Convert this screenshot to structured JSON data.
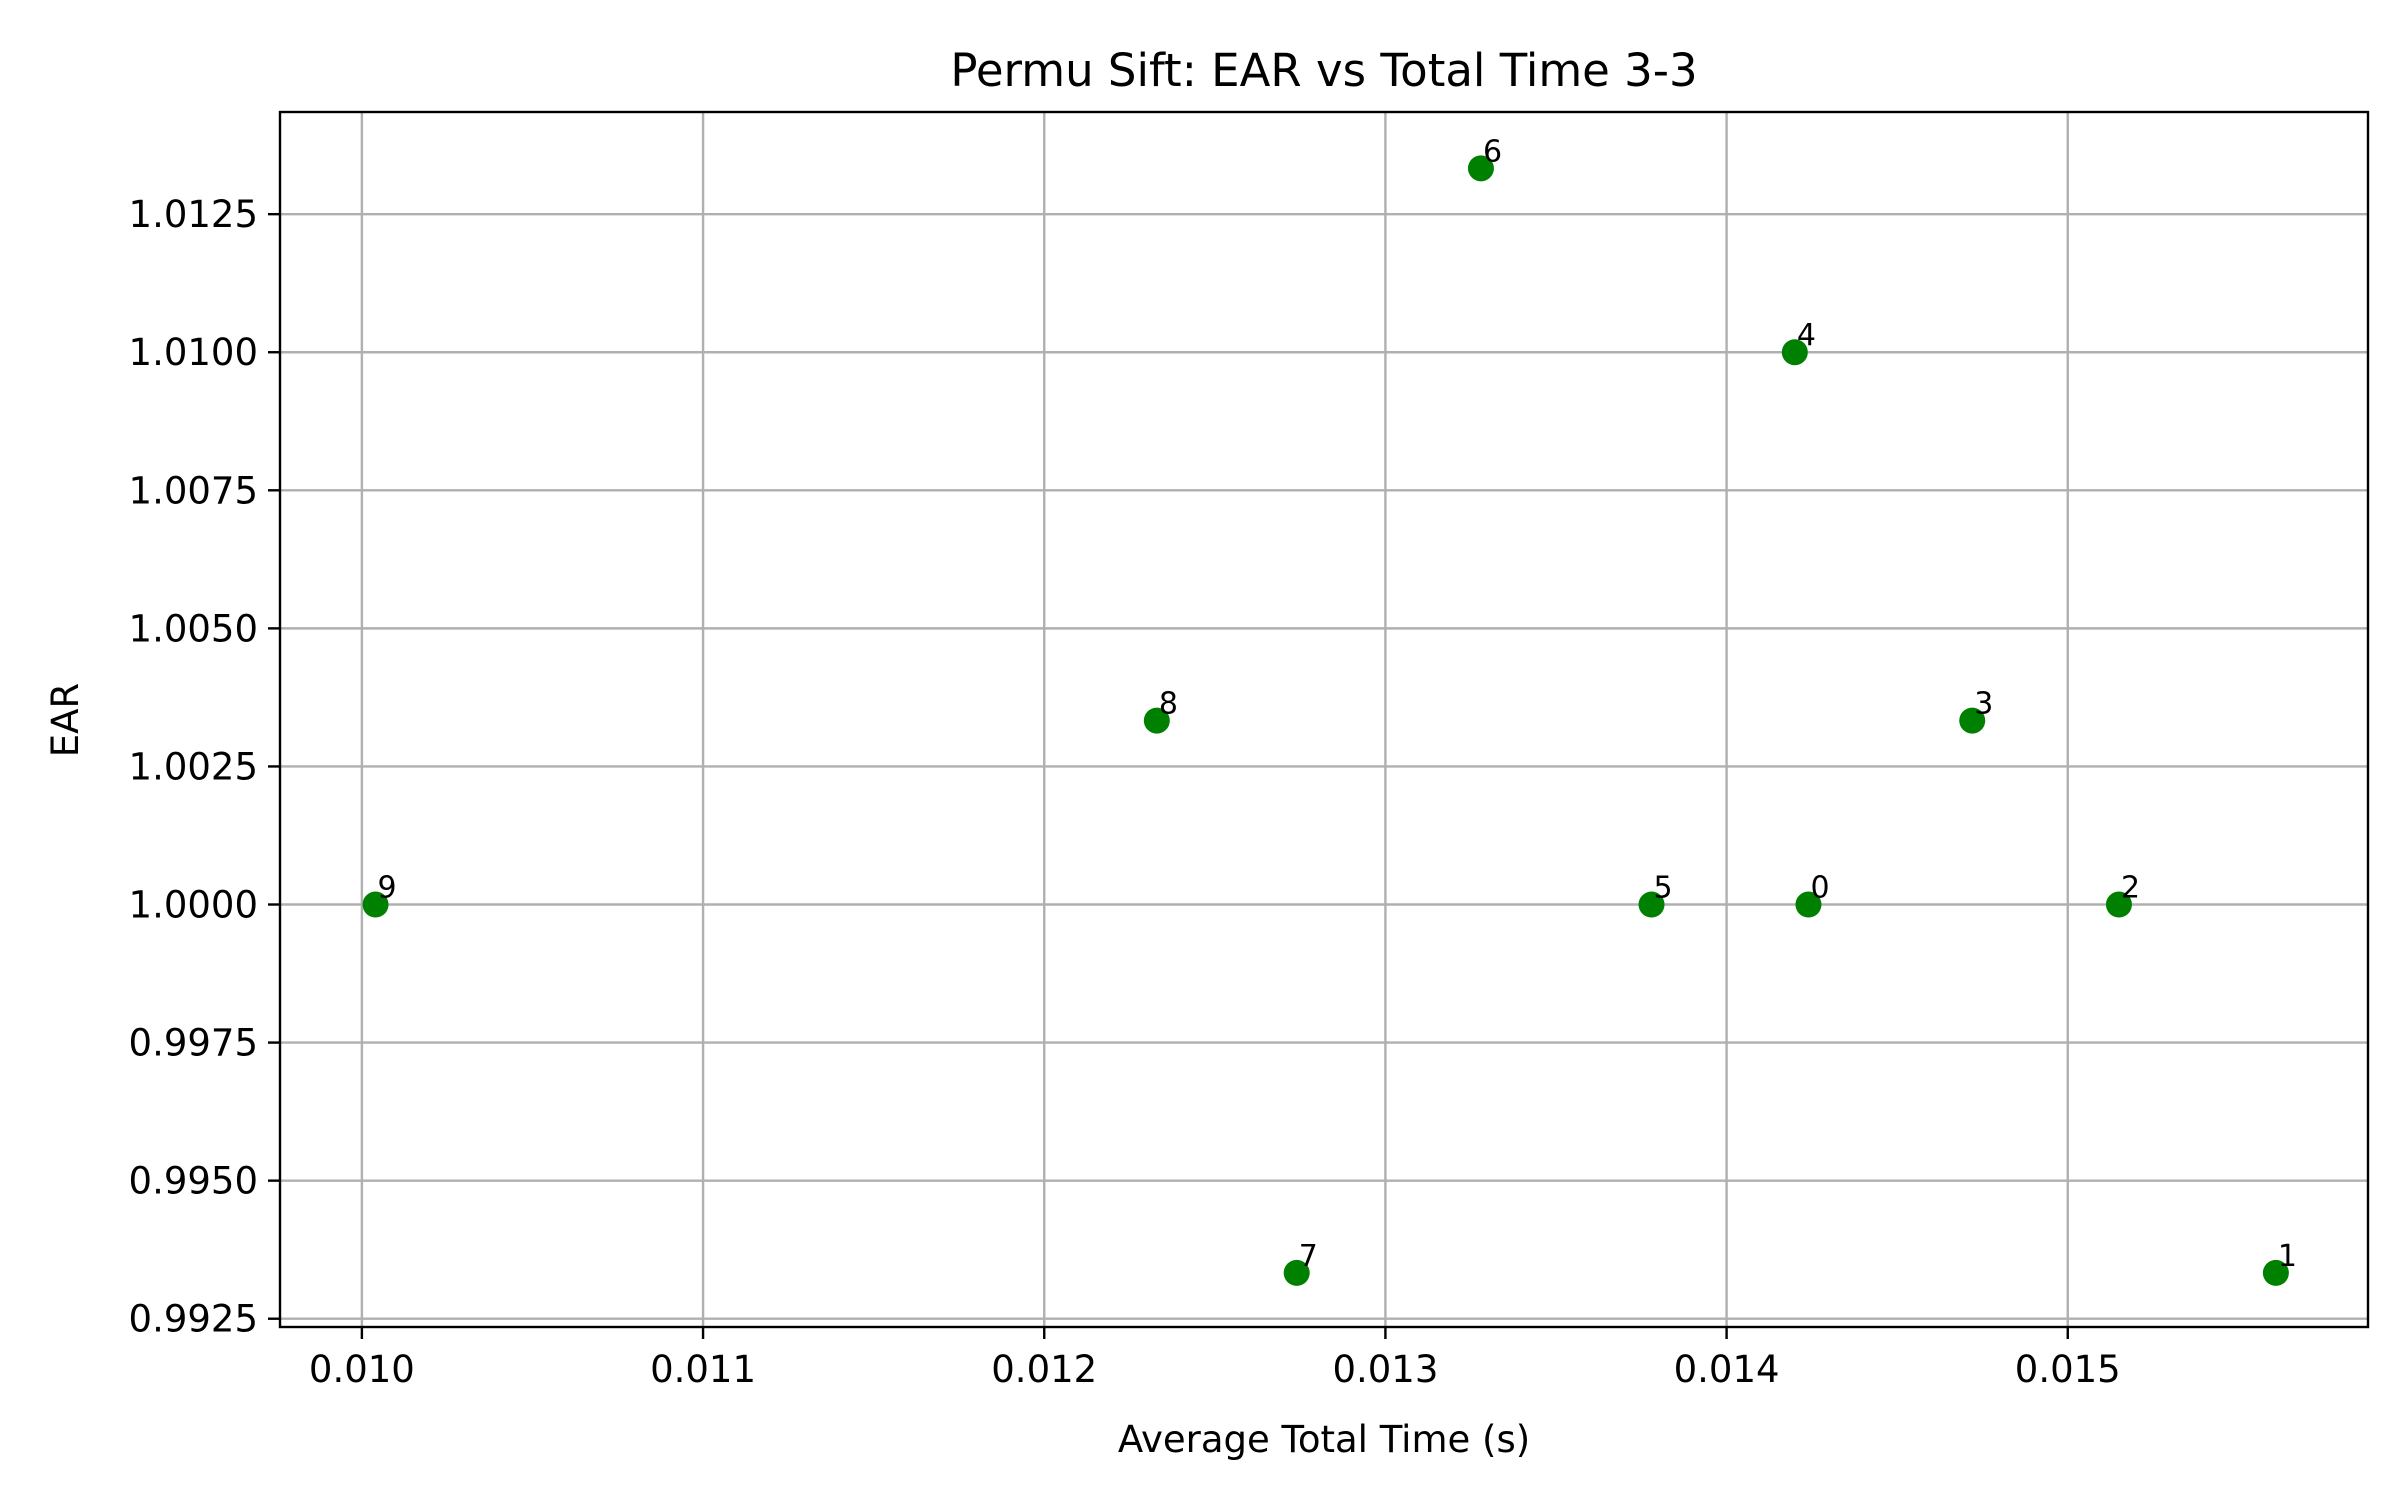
{
  "chart_data": {
    "type": "scatter",
    "title": "Permu Sift: EAR vs Total Time 3-3",
    "xlabel": "Average Total Time (s)",
    "ylabel": "EAR",
    "xlim": [
      0.00976,
      0.01588
    ],
    "ylim": [
      0.99235,
      1.01435
    ],
    "x_ticks": [
      0.01,
      0.011,
      0.012,
      0.013,
      0.014,
      0.015
    ],
    "x_tick_labels": [
      "0.010",
      "0.011",
      "0.012",
      "0.013",
      "0.014",
      "0.015"
    ],
    "y_ticks": [
      0.9925,
      0.995,
      0.9975,
      1.0,
      1.0025,
      1.005,
      1.0075,
      1.01,
      1.0125
    ],
    "y_tick_labels": [
      "0.9925",
      "0.9950",
      "0.9975",
      "1.0000",
      "1.0025",
      "1.0050",
      "1.0075",
      "1.0100",
      "1.0125"
    ],
    "grid": true,
    "marker_color": "#008000",
    "points": [
      {
        "label": "0",
        "x": 0.01424,
        "y": 1.0
      },
      {
        "label": "1",
        "x": 0.01561,
        "y": 0.99333
      },
      {
        "label": "2",
        "x": 0.01515,
        "y": 1.0
      },
      {
        "label": "3",
        "x": 0.01472,
        "y": 1.00333
      },
      {
        "label": "4",
        "x": 0.0142,
        "y": 1.01
      },
      {
        "label": "5",
        "x": 0.01378,
        "y": 1.0
      },
      {
        "label": "6",
        "x": 0.01328,
        "y": 1.01333
      },
      {
        "label": "7",
        "x": 0.01274,
        "y": 0.99333
      },
      {
        "label": "8",
        "x": 0.01233,
        "y": 1.00333
      },
      {
        "label": "9",
        "x": 0.01004,
        "y": 1.0
      }
    ]
  }
}
